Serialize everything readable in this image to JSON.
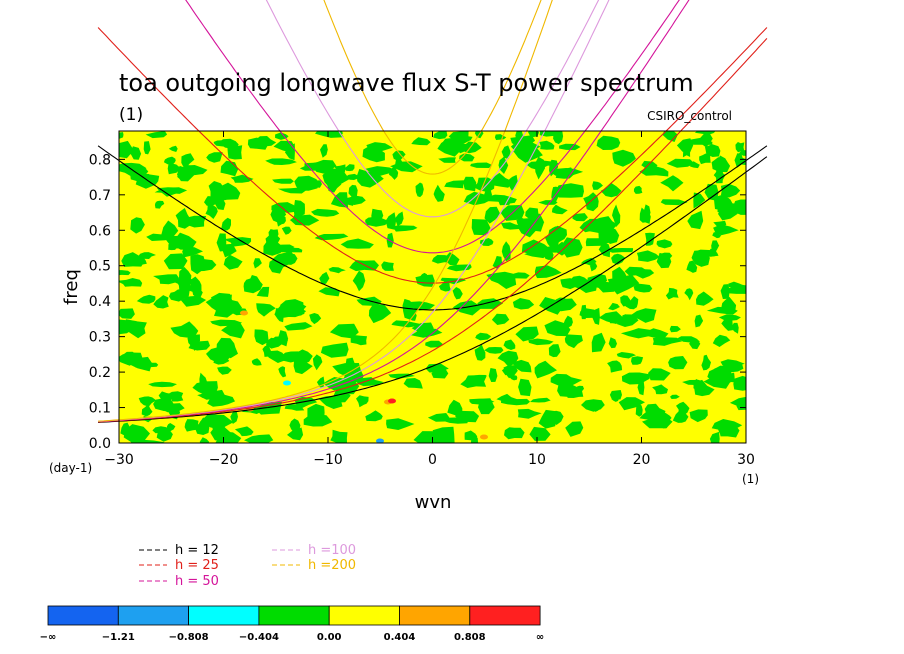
{
  "chart_data": {
    "type": "contour",
    "title": "toa outgoing longwave flux S-T power spectrum",
    "subtitle_left": "(1)",
    "subtitle_right": "CSIRO_control",
    "xlabel": "wvn",
    "ylabel": "freq",
    "x_unit": "(1)",
    "y_unit": "(day-1)",
    "xlim": [
      -30,
      30
    ],
    "ylim": [
      0.0,
      0.88
    ],
    "x_ticks": [
      -30,
      -20,
      -10,
      0,
      10,
      20,
      30
    ],
    "x_tick_labels": [
      "−30",
      "−20",
      "−10",
      "0",
      "10",
      "20",
      "30"
    ],
    "y_ticks": [
      0.0,
      0.1,
      0.2,
      0.3,
      0.4,
      0.5,
      0.6,
      0.7,
      0.8
    ],
    "y_tick_labels": [
      "0.0",
      "0.1",
      "0.2",
      "0.3",
      "0.4",
      "0.5",
      "0.6",
      "0.7",
      "0.8"
    ],
    "dispersion_curves": [
      {
        "label": "h = 12",
        "h": 12,
        "color": "#000000"
      },
      {
        "label": "h = 25",
        "h": 25,
        "color": "#e0201a"
      },
      {
        "label": "h = 50",
        "h": 50,
        "color": "#d4149a"
      },
      {
        "label": "h =100",
        "h": 100,
        "color": "#dd99dd"
      },
      {
        "label": "h =200",
        "h": 200,
        "color": "#f0b800"
      }
    ],
    "colorbar": {
      "colors": [
        "#1464f0",
        "#1ea0f0",
        "#00ffff",
        "#00dc00",
        "#ffff00",
        "#ffa500",
        "#ff2020"
      ],
      "labels": [
        "−∞",
        "−1.21",
        "−0.808",
        "−0.404",
        "0.00",
        "0.404",
        "0.808",
        "∞"
      ]
    },
    "field_colors": {
      "green": "#00dc00",
      "yellow": "#ffff00",
      "orange": "#ffa500",
      "red": "#ff2020",
      "cyan": "#00ffff",
      "blue": "#1ea0f0"
    }
  }
}
